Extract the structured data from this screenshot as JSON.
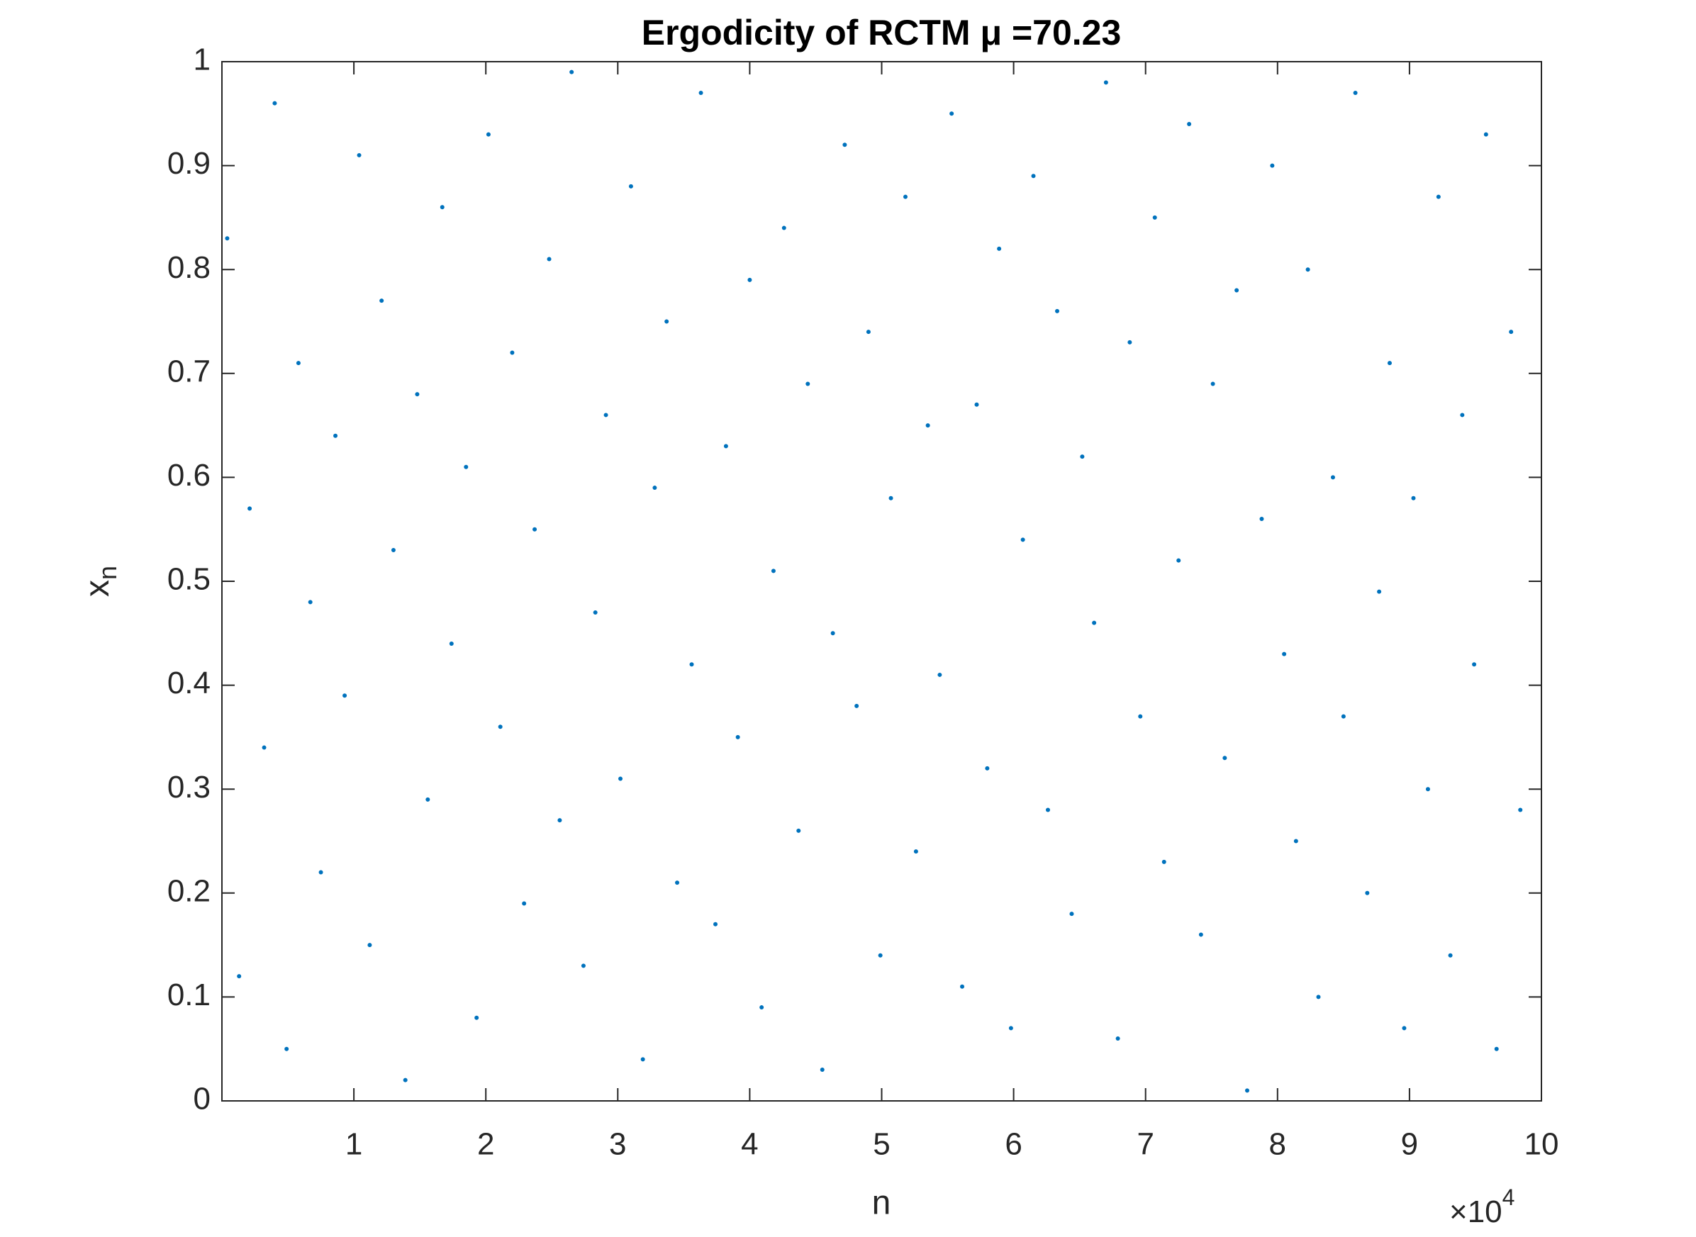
{
  "chart_data": {
    "type": "scatter",
    "title": "Ergodicity of RCTM μ =70.23",
    "xlabel": "n",
    "ylabel": "x",
    "ylabel_subscript": "n",
    "x_multiplier": "×10",
    "x_multiplier_exponent": "4",
    "color": "#0072BD",
    "xlim": [
      0,
      100000
    ],
    "xticks": [
      {
        "value": 10000,
        "label": "1"
      },
      {
        "value": 20000,
        "label": "2"
      },
      {
        "value": 30000,
        "label": "3"
      },
      {
        "value": 40000,
        "label": "4"
      },
      {
        "value": 50000,
        "label": "5"
      },
      {
        "value": 60000,
        "label": "6"
      },
      {
        "value": 70000,
        "label": "7"
      },
      {
        "value": 80000,
        "label": "8"
      },
      {
        "value": 90000,
        "label": "9"
      },
      {
        "value": 100000,
        "label": "10"
      }
    ],
    "ylim": [
      0,
      1
    ],
    "yticks": [
      0,
      0.1,
      0.2,
      0.3,
      0.4,
      0.5,
      0.6,
      0.7,
      0.8,
      0.9,
      1
    ],
    "grid": false,
    "x": [
      400,
      1300,
      2100,
      3200,
      4000,
      4900,
      5800,
      6700,
      7500,
      8600,
      9300,
      10400,
      11200,
      12100,
      13000,
      13900,
      14800,
      15600,
      16700,
      17400,
      18500,
      19300,
      20200,
      21100,
      22000,
      22900,
      23700,
      24800,
      25600,
      26500,
      27400,
      28300,
      29100,
      30200,
      31000,
      31900,
      32800,
      33700,
      34500,
      35600,
      36300,
      37400,
      38200,
      39100,
      40000,
      40900,
      41800,
      42600,
      43700,
      44400,
      45500,
      46300,
      47200,
      48100,
      49000,
      49900,
      50700,
      51800,
      52600,
      53500,
      54400,
      55300,
      56100,
      57200,
      58000,
      58900,
      59800,
      60700,
      61500,
      62600,
      63300,
      64400,
      65200,
      66100,
      67000,
      67900,
      68800,
      69600,
      70700,
      71400,
      72500,
      73300,
      74200,
      75100,
      76000,
      76900,
      77700,
      78800,
      79600,
      80500,
      81400,
      82300,
      83100,
      84200,
      85000,
      85900,
      86800,
      87700,
      88500,
      89600,
      90300,
      91400,
      92200,
      93100,
      94000,
      94900,
      95800,
      96600,
      97700,
      98400
    ],
    "values": [
      0.83,
      0.12,
      0.57,
      0.34,
      0.96,
      0.05,
      0.71,
      0.48,
      0.22,
      0.64,
      0.39,
      0.91,
      0.15,
      0.77,
      0.53,
      0.02,
      0.68,
      0.29,
      0.86,
      0.44,
      0.61,
      0.08,
      0.93,
      0.36,
      0.72,
      0.19,
      0.55,
      0.81,
      0.27,
      0.99,
      0.13,
      0.47,
      0.66,
      0.31,
      0.88,
      0.04,
      0.59,
      0.75,
      0.21,
      0.42,
      0.97,
      0.17,
      0.63,
      0.35,
      0.79,
      0.09,
      0.51,
      0.84,
      0.26,
      0.69,
      0.03,
      0.45,
      0.92,
      0.38,
      0.74,
      0.14,
      0.58,
      0.87,
      0.24,
      0.65,
      0.41,
      0.95,
      0.11,
      0.67,
      0.32,
      0.82,
      0.07,
      0.54,
      0.89,
      0.28,
      0.76,
      0.18,
      0.62,
      0.46,
      0.98,
      0.06,
      0.73,
      0.37,
      0.85,
      0.23,
      0.52,
      0.94,
      0.16,
      0.69,
      0.33,
      0.78,
      0.01,
      0.56,
      0.9,
      0.43,
      0.25,
      0.8,
      0.1,
      0.6,
      0.37,
      0.97,
      0.2,
      0.49,
      0.71,
      0.07,
      0.58,
      0.3,
      0.87,
      0.14,
      0.66,
      0.42,
      0.93,
      0.05,
      0.74,
      0.28
    ]
  }
}
